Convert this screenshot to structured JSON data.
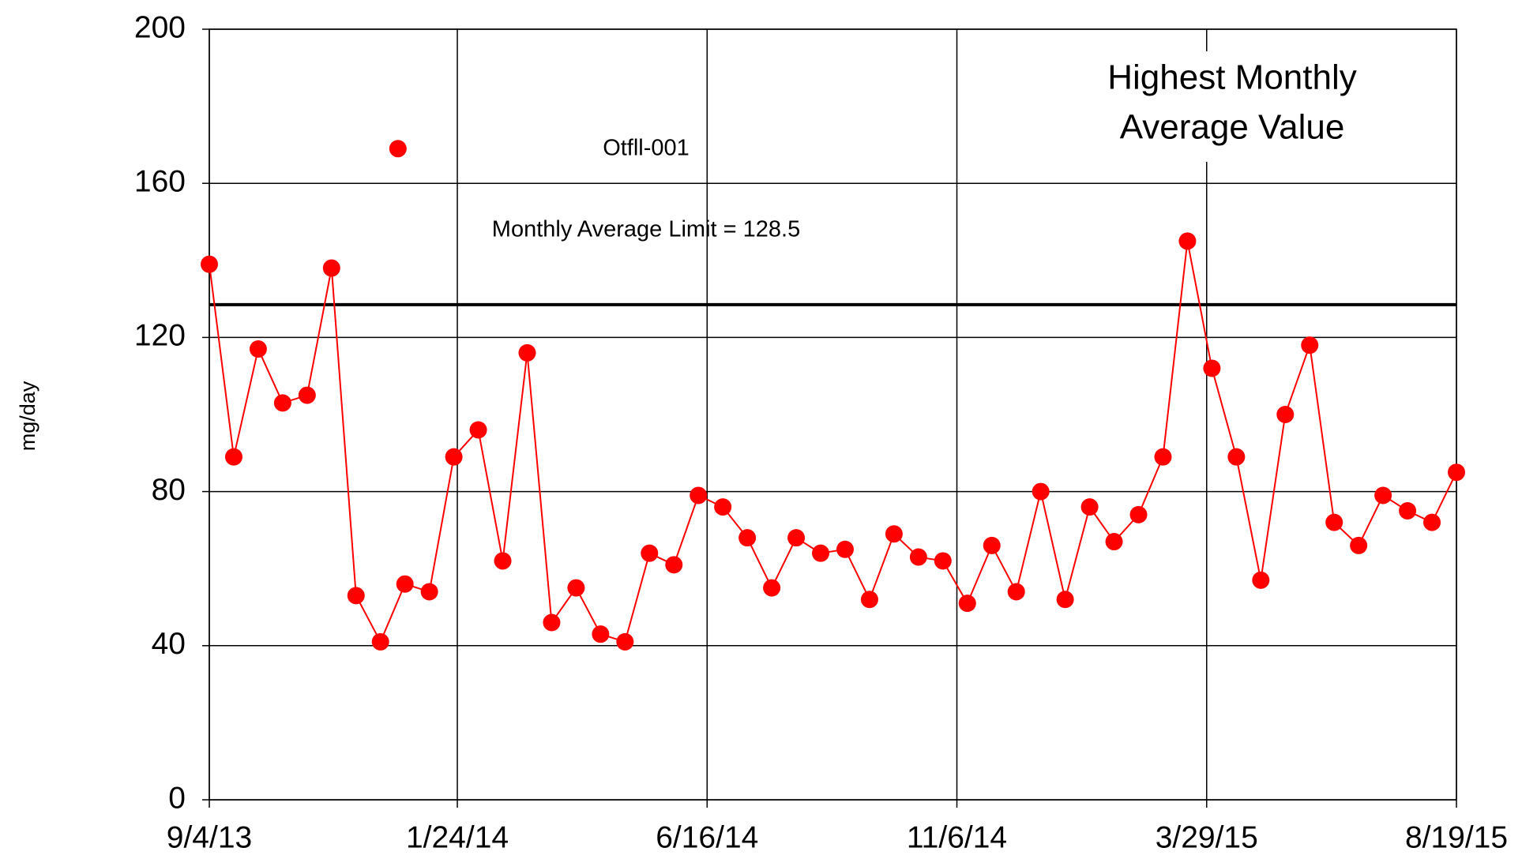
{
  "chart_data": {
    "type": "line",
    "y_label": "mg/day",
    "x": [
      "9/4/13",
      "9/18/13",
      "10/2/13",
      "10/16/13",
      "10/30/13",
      "11/13/13",
      "11/27/13",
      "12/11/13",
      "12/25/13",
      "1/8/14",
      "1/22/14",
      "2/5/14",
      "2/19/14",
      "3/5/14",
      "3/19/14",
      "4/2/14",
      "4/16/14",
      "4/30/14",
      "5/14/14",
      "5/28/14",
      "6/11/14",
      "6/25/14",
      "7/9/14",
      "7/23/14",
      "8/6/14",
      "8/20/14",
      "9/3/14",
      "9/17/14",
      "10/1/14",
      "10/15/14",
      "10/29/14",
      "11/12/14",
      "11/26/14",
      "12/10/14",
      "12/24/14",
      "1/7/15",
      "1/21/15",
      "2/4/15",
      "2/18/15",
      "3/4/15",
      "3/18/15",
      "4/1/15",
      "4/15/15",
      "4/29/15",
      "5/13/15",
      "5/27/15",
      "6/10/15",
      "6/24/15",
      "7/8/15",
      "7/22/15",
      "8/5/15",
      "8/19/15"
    ],
    "series": [
      {
        "name": "Otfll-001",
        "color": "#ff0000",
        "line": true,
        "values": [
          139,
          89,
          117,
          103,
          105,
          138,
          53,
          41,
          56,
          54,
          89,
          96,
          62,
          116,
          46,
          55,
          43,
          41,
          64,
          61,
          79,
          76,
          68,
          55,
          68,
          64,
          65,
          52,
          69,
          63,
          62,
          51,
          66,
          54,
          80,
          52,
          76,
          67,
          74,
          89,
          145,
          112,
          89,
          57,
          100,
          118,
          72,
          66,
          79,
          75,
          72,
          85
        ]
      },
      {
        "color": "#ff0000",
        "line": false,
        "x": [
          "12/21/13"
        ],
        "values": [
          169
        ]
      }
    ],
    "limit": {
      "value": 128.5,
      "label": "Monthly Average Limit = 128.5"
    },
    "annotation": [
      "Highest Monthly",
      "Average Value"
    ],
    "xlim": [
      "9/4/13",
      "8/19/15"
    ],
    "xticks": [
      "9/4/13",
      "1/24/14",
      "6/16/14",
      "11/6/14",
      "3/29/15",
      "8/19/15"
    ],
    "ylim": [
      0,
      200
    ],
    "yticks": [
      0,
      40,
      80,
      120,
      160,
      200
    ],
    "grid": true
  }
}
